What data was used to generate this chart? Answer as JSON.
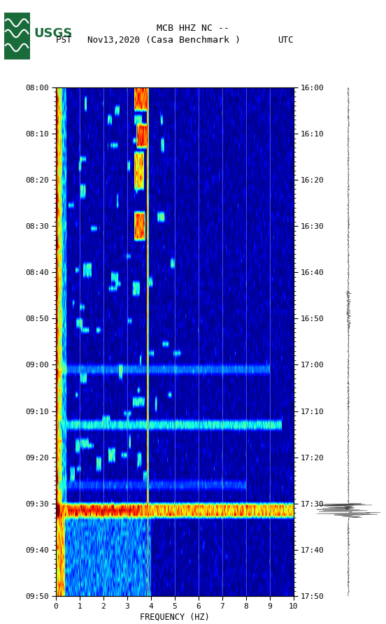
{
  "title_line1": "MCB HHZ NC --",
  "title_line2": "(Casa Benchmark )",
  "date_label": "Nov13,2020",
  "left_tz": "PST",
  "right_tz": "UTC",
  "freq_min": 0,
  "freq_max": 10,
  "ytick_pst": [
    "08:00",
    "08:10",
    "08:20",
    "08:30",
    "08:40",
    "08:50",
    "09:00",
    "09:10",
    "09:20",
    "09:30",
    "09:40",
    "09:50"
  ],
  "ytick_utc": [
    "16:00",
    "16:10",
    "16:20",
    "16:30",
    "16:40",
    "16:50",
    "17:00",
    "17:10",
    "17:20",
    "17:30",
    "17:40",
    "17:50"
  ],
  "xticks": [
    0,
    1,
    2,
    3,
    4,
    5,
    6,
    7,
    8,
    9,
    10
  ],
  "xlabel": "FREQUENCY (HZ)",
  "vertical_lines_freq": [
    1.0,
    2.0,
    3.0,
    3.85,
    5.0,
    6.0,
    7.0,
    8.0,
    9.0
  ],
  "colormap": "jet",
  "bg_color": "#FFFFFF",
  "fig_width": 5.52,
  "fig_height": 8.92,
  "n_time": 110,
  "n_freq": 400
}
